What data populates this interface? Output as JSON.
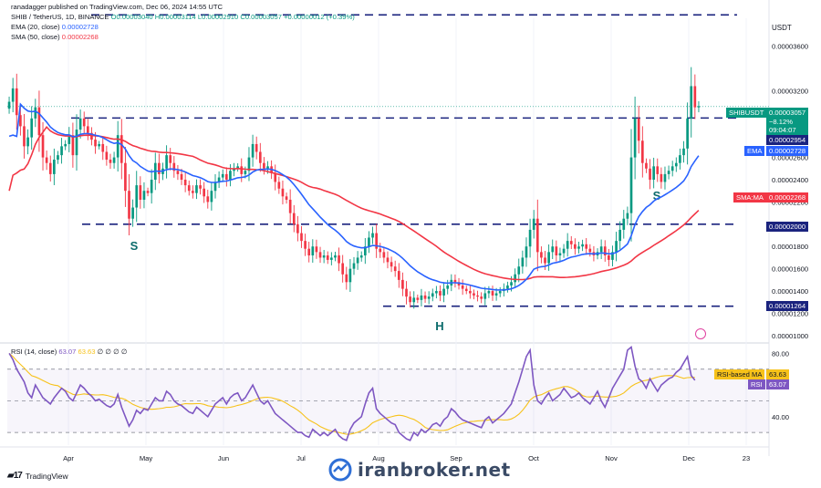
{
  "header": {
    "line1": "ranadagger published on TradingView.com, Dec 06, 2024 14:55 UTC",
    "line2_label": "SHIB / TetherUS, 1D, BINANCE",
    "ohlc": "O0.00003040 H0.00003114 L0.00002910 C0.00003057 +0.00000012 (+0.39%)",
    "ema_label": "EMA (20, close)",
    "ema_value": "0.00002728",
    "sma_label": "SMA (50, close)",
    "sma_value": "0.00002268",
    "currency": "USDT"
  },
  "rsi_header": {
    "label": "RSI (14, close)",
    "value": "63.07",
    "ma_value": "63.63",
    "extra": "∅ ∅ ∅ ∅"
  },
  "price_axis": [
    "0.00003600",
    "0.00003200",
    "0.00002600",
    "0.00002400",
    "0.00002200",
    "0.00001800",
    "0.00001600",
    "0.00001400",
    "0.00001200",
    "0.00001000"
  ],
  "rsi_axis": [
    "80.00",
    "40.00"
  ],
  "time_axis": [
    "Apr",
    "May",
    "Jun",
    "Jul",
    "Aug",
    "Sep",
    "Oct",
    "Nov",
    "Dec",
    "23"
  ],
  "badges": {
    "symbol": "SHIBUSDT",
    "last_price": "0.00003057",
    "change": "−8.12%",
    "countdown": "09:04:07",
    "level_top": "0.00002954",
    "ema_tag": "EMA",
    "ema_price": "0.00002728",
    "sma_tag": "SMA:MA",
    "sma_price": "0.00002268",
    "level_mid": "0.00002000",
    "level_low": "0.00001264",
    "rsi_ma_tag": "RSI-based MA",
    "rsi_ma_val": "63.63",
    "rsi_tag": "RSI",
    "rsi_val": "63.07"
  },
  "annotations": {
    "left_shoulder": "S",
    "head": "H",
    "right_shoulder": "S"
  },
  "footer": {
    "tv_brand": "TradingView",
    "watermark": "iranbroker.net"
  },
  "colors": {
    "up": "#089981",
    "down": "#f23645",
    "ema": "#2962ff",
    "sma": "#f23645",
    "rsi": "#7e57c2",
    "rsi_ma": "#f7c21a",
    "level": "#1a237e"
  },
  "chart_data": {
    "type": "candlestick",
    "symbol": "SHIB / TetherUS, 1D, BINANCE",
    "x_start": "2024-03-06",
    "price_scale": "1e-5",
    "ylim_price": [
      0.95,
      3.85
    ],
    "ylim_rsi": [
      22,
      86
    ],
    "levels": [
      2.954,
      2.0,
      1.264,
      3.88
    ],
    "closes": [
      3.1,
      3.22,
      2.98,
      2.88,
      2.7,
      2.78,
      2.95,
      3.05,
      2.8,
      2.6,
      2.55,
      2.45,
      2.58,
      2.62,
      2.7,
      2.72,
      2.8,
      2.62,
      2.85,
      2.95,
      2.88,
      2.82,
      2.76,
      2.7,
      2.72,
      2.65,
      2.58,
      2.55,
      2.6,
      2.8,
      2.55,
      2.3,
      2.05,
      2.15,
      2.35,
      2.22,
      2.3,
      2.28,
      2.4,
      2.55,
      2.45,
      2.5,
      2.62,
      2.55,
      2.48,
      2.45,
      2.4,
      2.35,
      2.3,
      2.28,
      2.35,
      2.32,
      2.25,
      2.2,
      2.3,
      2.38,
      2.42,
      2.45,
      2.4,
      2.48,
      2.5,
      2.52,
      2.45,
      2.48,
      2.6,
      2.72,
      2.65,
      2.55,
      2.5,
      2.52,
      2.46,
      2.38,
      2.32,
      2.25,
      2.22,
      2.1,
      2.0,
      1.92,
      1.85,
      1.78,
      1.72,
      1.8,
      1.75,
      1.7,
      1.72,
      1.68,
      1.7,
      1.72,
      1.65,
      1.55,
      1.48,
      1.6,
      1.65,
      1.7,
      1.72,
      1.8,
      1.88,
      1.92,
      1.78,
      1.75,
      1.7,
      1.66,
      1.62,
      1.58,
      1.5,
      1.42,
      1.35,
      1.3,
      1.34,
      1.32,
      1.36,
      1.33,
      1.35,
      1.38,
      1.4,
      1.36,
      1.42,
      1.45,
      1.5,
      1.48,
      1.45,
      1.42,
      1.4,
      1.38,
      1.36,
      1.35,
      1.33,
      1.38,
      1.4,
      1.36,
      1.38,
      1.4,
      1.42,
      1.45,
      1.48,
      1.55,
      1.62,
      1.7,
      1.8,
      1.95,
      2.05,
      1.75,
      1.7,
      1.65,
      1.75,
      1.8,
      1.72,
      1.74,
      1.78,
      1.85,
      1.82,
      1.78,
      1.8,
      1.82,
      1.78,
      1.75,
      1.72,
      1.75,
      1.8,
      1.72,
      1.68,
      1.75,
      1.85,
      1.95,
      2.05,
      2.1,
      2.6,
      2.95,
      2.75,
      2.55,
      2.5,
      2.4,
      2.52,
      2.45,
      2.38,
      2.45,
      2.48,
      2.52,
      2.55,
      2.62,
      2.68,
      2.95,
      3.24,
      3.05,
      3.06
    ],
    "rsi": [
      80,
      76,
      70,
      66,
      62,
      55,
      52,
      60,
      56,
      52,
      50,
      48,
      52,
      55,
      58,
      56,
      52,
      50,
      55,
      60,
      58,
      55,
      53,
      50,
      51,
      49,
      47,
      46,
      48,
      54,
      46,
      40,
      34,
      38,
      44,
      42,
      45,
      44,
      48,
      52,
      50,
      50,
      56,
      54,
      50,
      48,
      47,
      45,
      43,
      42,
      46,
      44,
      42,
      40,
      44,
      48,
      50,
      52,
      48,
      52,
      54,
      55,
      50,
      52,
      56,
      60,
      55,
      50,
      48,
      50,
      46,
      42,
      40,
      38,
      36,
      34,
      32,
      30,
      30,
      28,
      27,
      32,
      30,
      28,
      30,
      28,
      30,
      32,
      28,
      26,
      25,
      32,
      36,
      38,
      40,
      48,
      55,
      58,
      45,
      42,
      40,
      38,
      36,
      35,
      30,
      28,
      26,
      25,
      30,
      28,
      32,
      30,
      32,
      35,
      36,
      34,
      38,
      40,
      45,
      43,
      40,
      38,
      37,
      36,
      35,
      34,
      33,
      38,
      40,
      36,
      38,
      40,
      42,
      45,
      48,
      55,
      62,
      70,
      78,
      82,
      60,
      50,
      48,
      52,
      55,
      50,
      52,
      54,
      58,
      55,
      52,
      53,
      55,
      52,
      50,
      48,
      52,
      56,
      50,
      46,
      52,
      58,
      62,
      66,
      70,
      82,
      84,
      72,
      64,
      62,
      58,
      64,
      60,
      56,
      60,
      62,
      64,
      65,
      68,
      70,
      74,
      78,
      66,
      63
    ],
    "series": [
      {
        "name": "EMA (20, close)"
      },
      {
        "name": "SMA (50, close)"
      },
      {
        "name": "RSI (14, close)"
      }
    ]
  }
}
